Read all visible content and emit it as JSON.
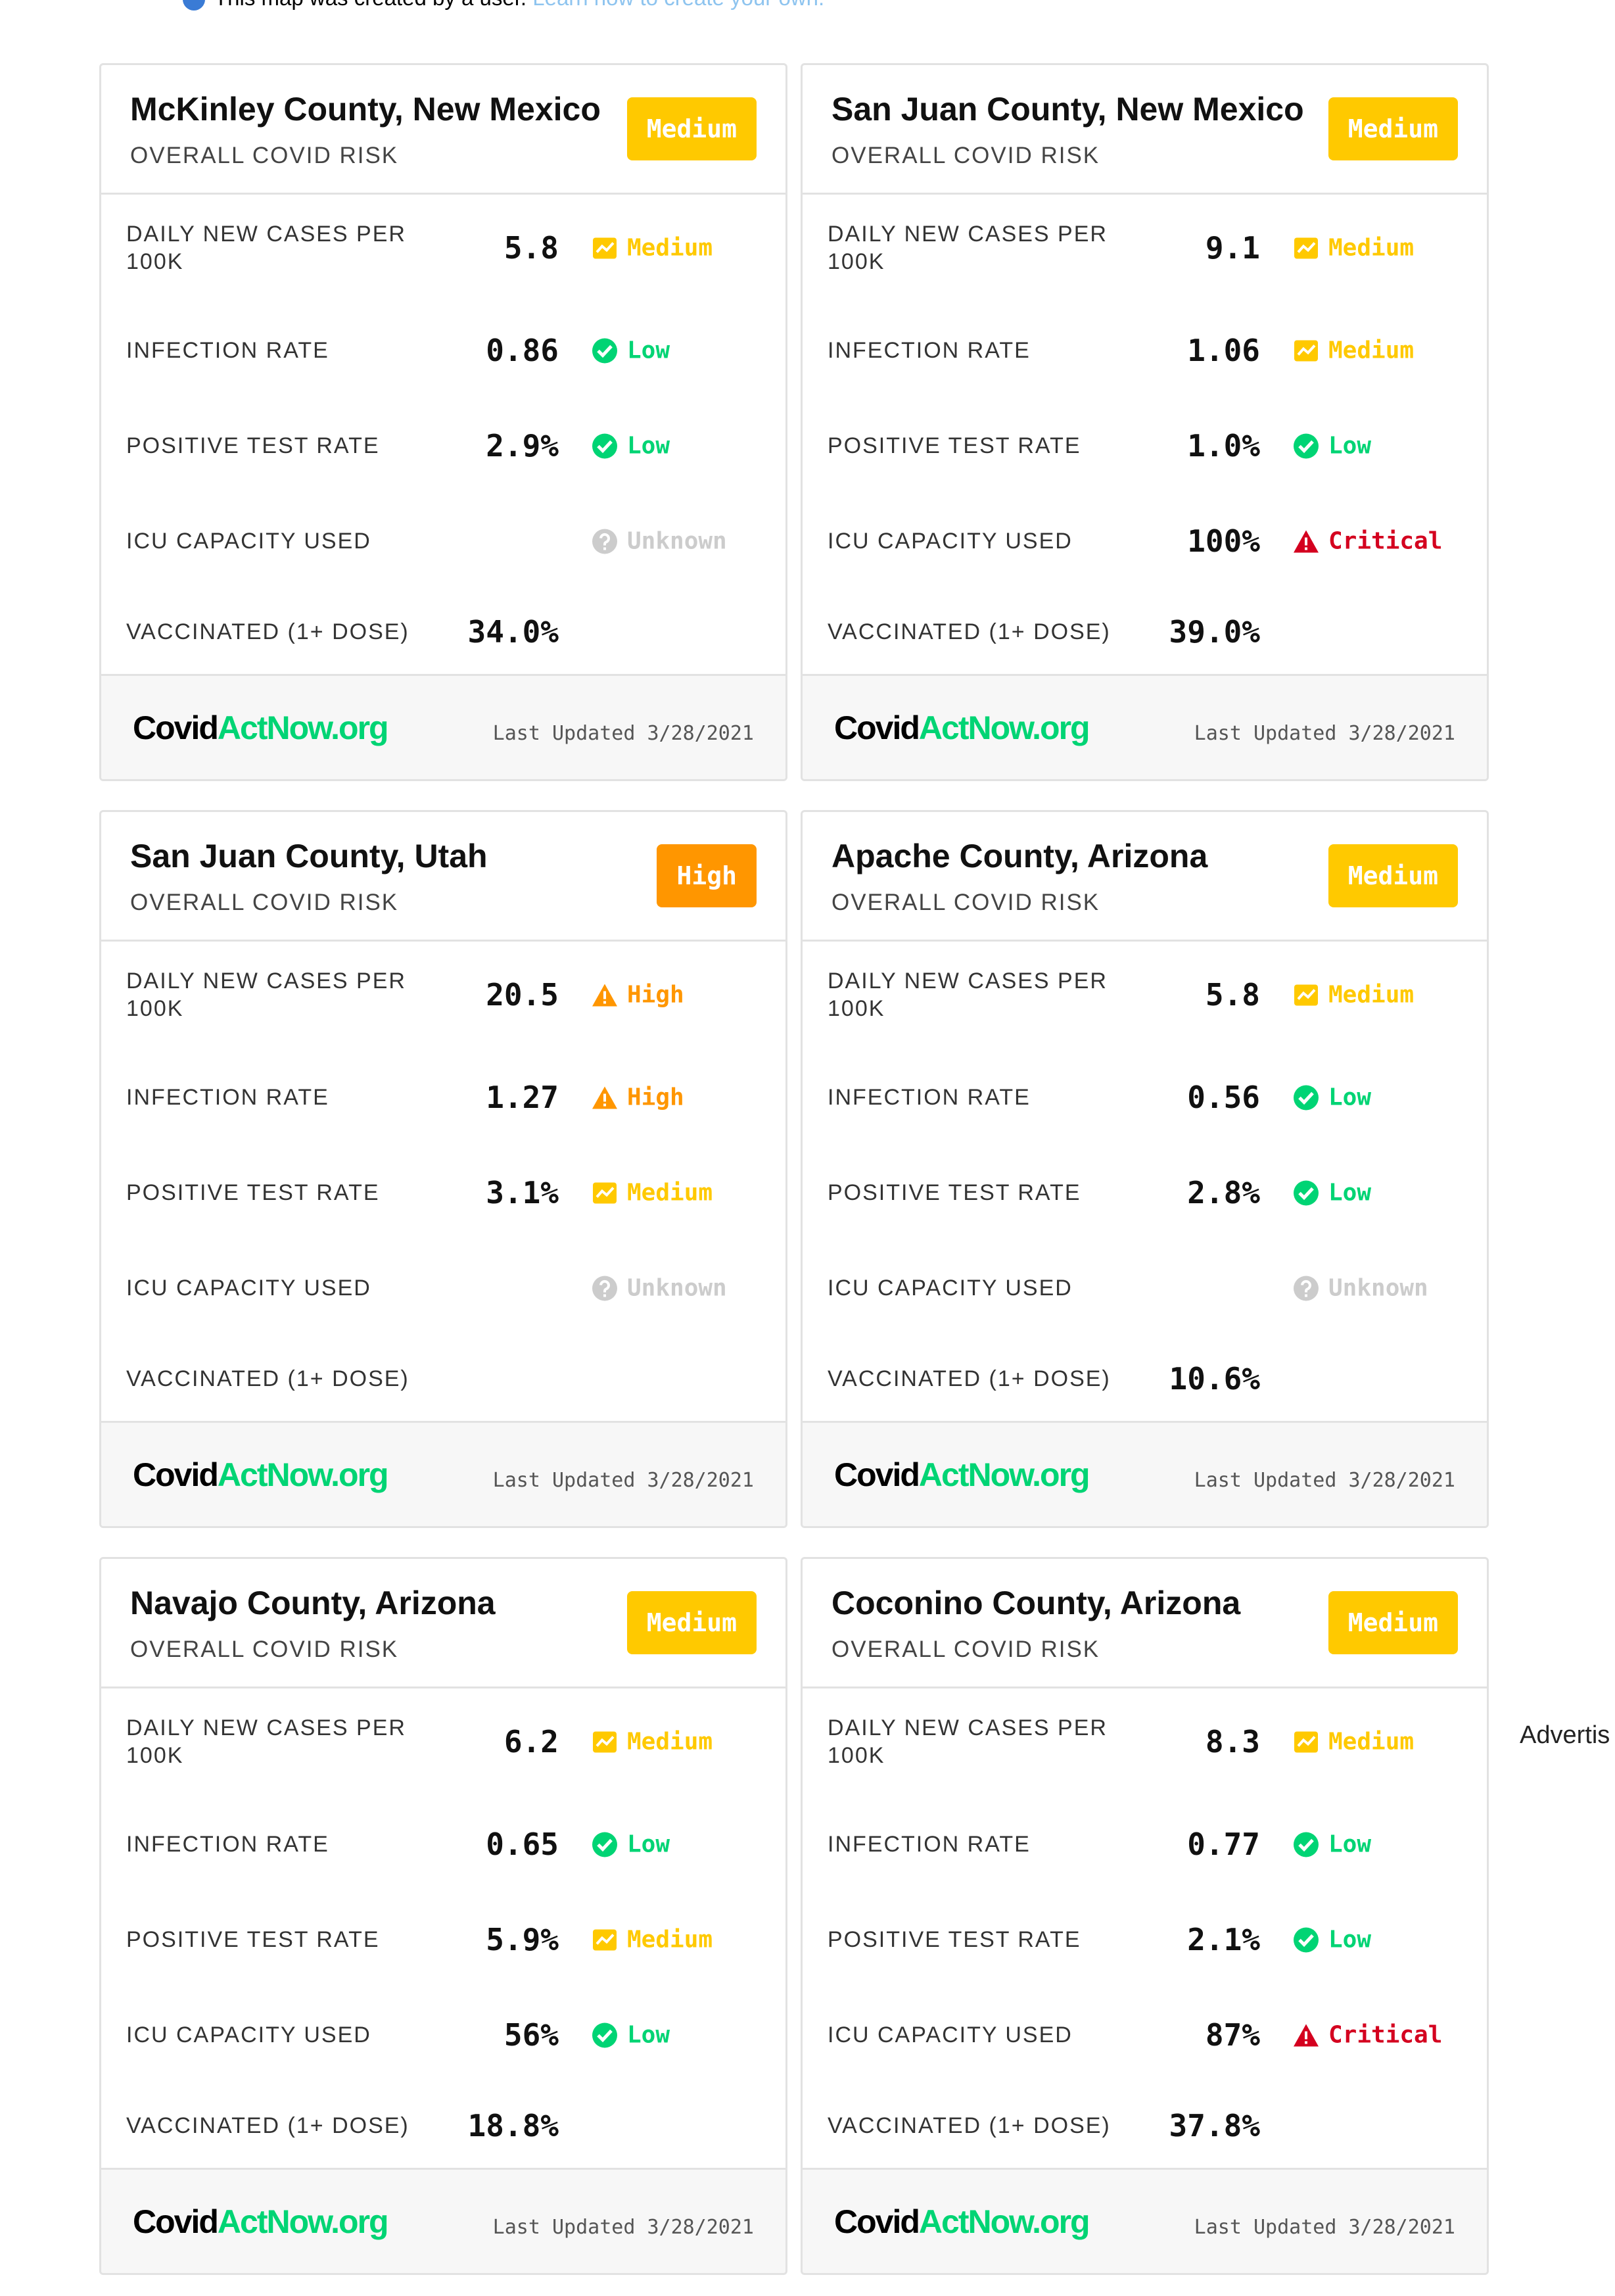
{
  "note": {
    "text": "This map was created by a user.",
    "link": "Learn how to create your own."
  },
  "advertisement": "Advertis",
  "cards": [
    {
      "title": "McKinley County, New Mexico",
      "subtitle": "OVERALL COVID RISK",
      "risk": "Medium",
      "risk_color": "#ffc900",
      "metrics": [
        {
          "label": "DAILY NEW CASES PER 100K",
          "value": "5.8",
          "level": "Medium",
          "icon": "trend",
          "color": "#ffc900"
        },
        {
          "label": "INFECTION RATE",
          "value": "0.86",
          "level": "Low",
          "icon": "check",
          "color": "#00d474"
        },
        {
          "label": "POSITIVE TEST RATE",
          "value": "2.9%",
          "level": "Low",
          "icon": "check",
          "color": "#00d474"
        },
        {
          "label": "ICU CAPACITY USED",
          "value": null,
          "level": "Unknown",
          "icon": "question",
          "color": "#cccccc"
        },
        {
          "label": "VACCINATED (1+ DOSE)",
          "value": "34.0%",
          "level": null,
          "icon": null,
          "color": null
        }
      ],
      "logo_prefix": "Covid",
      "logo_suffix": "ActNow.org",
      "updated": "Last Updated 3/28/2021"
    },
    {
      "title": "San Juan County, New Mexico",
      "subtitle": "OVERALL COVID RISK",
      "risk": "Medium",
      "risk_color": "#ffc900",
      "metrics": [
        {
          "label": "DAILY NEW CASES PER 100K",
          "value": "9.1",
          "level": "Medium",
          "icon": "trend",
          "color": "#ffc900"
        },
        {
          "label": "INFECTION RATE",
          "value": "1.06",
          "level": "Medium",
          "icon": "trend",
          "color": "#ffc900"
        },
        {
          "label": "POSITIVE TEST RATE",
          "value": "1.0%",
          "level": "Low",
          "icon": "check",
          "color": "#00d474"
        },
        {
          "label": "ICU CAPACITY USED",
          "value": "100%",
          "level": "Critical",
          "icon": "warning",
          "color": "#d4001f"
        },
        {
          "label": "VACCINATED (1+ DOSE)",
          "value": "39.0%",
          "level": null,
          "icon": null,
          "color": null
        }
      ],
      "logo_prefix": "Covid",
      "logo_suffix": "ActNow.org",
      "updated": "Last Updated 3/28/2021"
    },
    {
      "title": "San Juan County, Utah",
      "subtitle": "OVERALL COVID RISK",
      "risk": "High",
      "risk_color": "#ff9600",
      "metrics": [
        {
          "label": "DAILY NEW CASES PER 100K",
          "value": "20.5",
          "level": "High",
          "icon": "warning",
          "color": "#ff9600"
        },
        {
          "label": "INFECTION RATE",
          "value": "1.27",
          "level": "High",
          "icon": "warning",
          "color": "#ff9600"
        },
        {
          "label": "POSITIVE TEST RATE",
          "value": "3.1%",
          "level": "Medium",
          "icon": "trend",
          "color": "#ffc900"
        },
        {
          "label": "ICU CAPACITY USED",
          "value": null,
          "level": "Unknown",
          "icon": "question",
          "color": "#cccccc"
        },
        {
          "label": "VACCINATED (1+ DOSE)",
          "value": null,
          "level": null,
          "icon": null,
          "color": null
        }
      ],
      "logo_prefix": "Covid",
      "logo_suffix": "ActNow.org",
      "updated": "Last Updated 3/28/2021"
    },
    {
      "title": "Apache County, Arizona",
      "subtitle": "OVERALL COVID RISK",
      "risk": "Medium",
      "risk_color": "#ffc900",
      "metrics": [
        {
          "label": "DAILY NEW CASES PER 100K",
          "value": "5.8",
          "level": "Medium",
          "icon": "trend",
          "color": "#ffc900"
        },
        {
          "label": "INFECTION RATE",
          "value": "0.56",
          "level": "Low",
          "icon": "check",
          "color": "#00d474"
        },
        {
          "label": "POSITIVE TEST RATE",
          "value": "2.8%",
          "level": "Low",
          "icon": "check",
          "color": "#00d474"
        },
        {
          "label": "ICU CAPACITY USED",
          "value": null,
          "level": "Unknown",
          "icon": "question",
          "color": "#cccccc"
        },
        {
          "label": "VACCINATED (1+ DOSE)",
          "value": "10.6%",
          "level": null,
          "icon": null,
          "color": null
        }
      ],
      "logo_prefix": "Covid",
      "logo_suffix": "ActNow.org",
      "updated": "Last Updated 3/28/2021"
    },
    {
      "title": "Navajo County, Arizona",
      "subtitle": "OVERALL COVID RISK",
      "risk": "Medium",
      "risk_color": "#ffc900",
      "metrics": [
        {
          "label": "DAILY NEW CASES PER 100K",
          "value": "6.2",
          "level": "Medium",
          "icon": "trend",
          "color": "#ffc900"
        },
        {
          "label": "INFECTION RATE",
          "value": "0.65",
          "level": "Low",
          "icon": "check",
          "color": "#00d474"
        },
        {
          "label": "POSITIVE TEST RATE",
          "value": "5.9%",
          "level": "Medium",
          "icon": "trend",
          "color": "#ffc900"
        },
        {
          "label": "ICU CAPACITY USED",
          "value": "56%",
          "level": "Low",
          "icon": "check",
          "color": "#00d474"
        },
        {
          "label": "VACCINATED (1+ DOSE)",
          "value": "18.8%",
          "level": null,
          "icon": null,
          "color": null
        }
      ],
      "logo_prefix": "Covid",
      "logo_suffix": "ActNow.org",
      "updated": "Last Updated 3/28/2021"
    },
    {
      "title": "Coconino County, Arizona",
      "subtitle": "OVERALL COVID RISK",
      "risk": "Medium",
      "risk_color": "#ffc900",
      "metrics": [
        {
          "label": "DAILY NEW CASES PER 100K",
          "value": "8.3",
          "level": "Medium",
          "icon": "trend",
          "color": "#ffc900"
        },
        {
          "label": "INFECTION RATE",
          "value": "0.77",
          "level": "Low",
          "icon": "check",
          "color": "#00d474"
        },
        {
          "label": "POSITIVE TEST RATE",
          "value": "2.1%",
          "level": "Low",
          "icon": "check",
          "color": "#00d474"
        },
        {
          "label": "ICU CAPACITY USED",
          "value": "87%",
          "level": "Critical",
          "icon": "warning",
          "color": "#d4001f"
        },
        {
          "label": "VACCINATED (1+ DOSE)",
          "value": "37.8%",
          "level": null,
          "icon": null,
          "color": null
        }
      ],
      "logo_prefix": "Covid",
      "logo_suffix": "ActNow.org",
      "updated": "Last Updated 3/28/2021"
    }
  ]
}
